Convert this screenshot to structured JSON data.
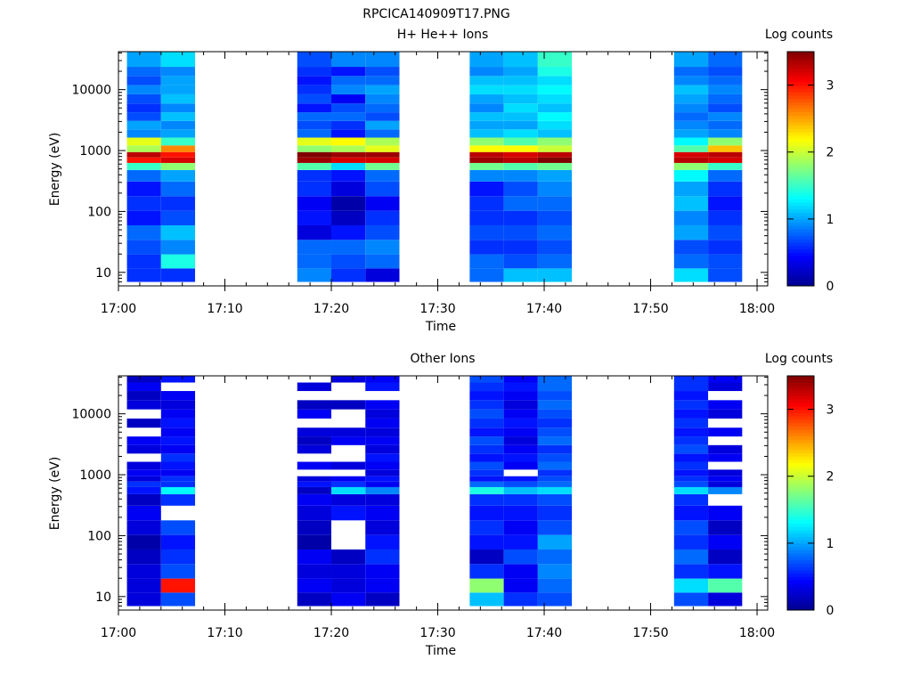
{
  "figure": {
    "title": "RPCICA140909T17.PNG"
  },
  "colormap": [
    "#00008f",
    "#0000ff",
    "#0080ff",
    "#00ffff",
    "#80ff80",
    "#ffff00",
    "#ff8000",
    "#ff0000",
    "#800000"
  ],
  "chart_data": [
    {
      "type": "heatmap",
      "title": "H+ He++ Ions",
      "xlabel": "Time",
      "ylabel": "Energy (eV)",
      "xlim": [
        "17:00",
        "18:01"
      ],
      "x_ticks": [
        "17:00",
        "17:10",
        "17:20",
        "17:30",
        "17:40",
        "17:50",
        "18:00"
      ],
      "y_scale": "log",
      "ylim": [
        6,
        42000
      ],
      "y_ticks": [
        "10",
        "100",
        "1000",
        "10000"
      ],
      "colorbar": {
        "label": "Log counts",
        "range": [
          0,
          3.5
        ],
        "ticks": [
          "0",
          "1",
          "2",
          "3"
        ]
      },
      "energy_bins_eV": [
        9,
        15,
        26,
        45,
        78,
        135,
        235,
        410,
        560,
        700,
        850,
        1050,
        1400,
        1900,
        2600,
        3600,
        5000,
        7000,
        10000,
        14000,
        20000,
        28000,
        38000
      ],
      "columns": [
        {
          "start": "17:00.8",
          "end": "17:04.0",
          "log_counts": [
            0.6,
            0.6,
            0.7,
            0.8,
            0.5,
            0.6,
            0.5,
            0.8,
            1.5,
            3.0,
            3.3,
            1.9,
            2.1,
            0.9,
            1.0,
            0.7,
            0.6,
            0.7,
            0.9,
            0.7,
            0.8,
            1.0,
            1.0
          ]
        },
        {
          "start": "17:04.0",
          "end": "17:07.2",
          "log_counts": [
            0.6,
            1.4,
            0.9,
            1.1,
            0.7,
            0.6,
            0.8,
            1.0,
            1.8,
            3.2,
            3.0,
            2.6,
            1.5,
            1.0,
            0.9,
            1.1,
            0.9,
            1.1,
            1.0,
            1.0,
            0.9,
            1.2,
            1.2
          ]
        },
        {
          "start": "17:16.8",
          "end": "17:20.0",
          "log_counts": [
            0.9,
            0.8,
            0.8,
            0.3,
            0.5,
            0.4,
            0.6,
            0.6,
            1.6,
            3.4,
            3.5,
            1.8,
            2.1,
            0.8,
            0.7,
            0.8,
            0.5,
            0.7,
            0.6,
            0.5,
            0.6,
            0.7,
            0.7
          ]
        },
        {
          "start": "17:20.0",
          "end": "17:23.2",
          "log_counts": [
            0.6,
            0.7,
            0.8,
            0.5,
            0.2,
            0.1,
            0.3,
            0.5,
            1.2,
            3.2,
            3.4,
            1.9,
            2.2,
            0.5,
            0.6,
            0.8,
            0.7,
            0.4,
            0.9,
            0.8,
            0.5,
            0.9,
            0.9
          ]
        },
        {
          "start": "17:23.2",
          "end": "17:26.4",
          "log_counts": [
            0.3,
            0.8,
            0.9,
            0.7,
            0.6,
            0.4,
            0.7,
            0.8,
            1.7,
            3.2,
            3.4,
            2.1,
            1.9,
            0.8,
            1.0,
            0.7,
            0.8,
            0.9,
            1.0,
            0.8,
            0.7,
            0.9,
            0.9
          ]
        },
        {
          "start": "17:33.0",
          "end": "17:36.2",
          "log_counts": [
            0.8,
            0.8,
            0.6,
            0.7,
            0.6,
            0.6,
            0.5,
            0.9,
            1.7,
            3.4,
            3.3,
            2.2,
            1.8,
            1.1,
            1.0,
            1.1,
            0.9,
            1.0,
            1.2,
            1.1,
            0.9,
            1.0,
            1.0
          ]
        },
        {
          "start": "17:36.2",
          "end": "17:39.4",
          "log_counts": [
            1.1,
            0.7,
            0.6,
            0.7,
            0.6,
            0.8,
            0.7,
            0.9,
            1.6,
            3.3,
            3.2,
            2.2,
            1.6,
            1.2,
            1.0,
            1.1,
            1.2,
            1.1,
            1.2,
            1.1,
            1.0,
            1.1,
            1.1
          ]
        },
        {
          "start": "17:39.4",
          "end": "17:42.6",
          "log_counts": [
            1.1,
            0.8,
            0.7,
            0.8,
            0.7,
            0.8,
            0.9,
            1.0,
            1.7,
            3.5,
            3.3,
            2.0,
            1.8,
            1.1,
            1.2,
            1.3,
            1.1,
            1.2,
            1.3,
            1.2,
            1.4,
            1.5,
            1.5
          ]
        },
        {
          "start": "17:52.2",
          "end": "17:55.4",
          "log_counts": [
            1.2,
            0.8,
            0.7,
            1.0,
            0.9,
            1.1,
            1.0,
            1.3,
            1.8,
            3.3,
            3.2,
            1.6,
            1.3,
            1.0,
            0.9,
            0.8,
            0.9,
            1.0,
            1.1,
            0.9,
            0.8,
            1.0,
            1.0
          ]
        },
        {
          "start": "17:55.4",
          "end": "17:58.6",
          "log_counts": [
            0.7,
            0.7,
            0.6,
            0.7,
            0.6,
            0.5,
            0.6,
            0.8,
            1.5,
            3.2,
            3.3,
            2.4,
            1.8,
            0.9,
            0.8,
            0.9,
            0.7,
            0.8,
            0.9,
            0.8,
            0.7,
            0.8,
            0.8
          ]
        }
      ]
    },
    {
      "type": "heatmap",
      "title": "Other Ions",
      "xlabel": "Time",
      "ylabel": "Energy (eV)",
      "xlim": [
        "17:00",
        "18:01"
      ],
      "x_ticks": [
        "17:00",
        "17:10",
        "17:20",
        "17:30",
        "17:40",
        "17:50",
        "18:00"
      ],
      "y_scale": "log",
      "ylim": [
        6,
        42000
      ],
      "y_ticks": [
        "10",
        "100",
        "1000",
        "10000"
      ],
      "colorbar": {
        "label": "Log counts",
        "range": [
          0,
          3.5
        ],
        "ticks": [
          "0",
          "1",
          "2",
          "3"
        ]
      },
      "energy_bins_eV": [
        9,
        15,
        26,
        45,
        78,
        135,
        235,
        410,
        560,
        700,
        850,
        1050,
        1400,
        1900,
        2600,
        3600,
        5000,
        7000,
        10000,
        14000,
        20000,
        28000,
        38000
      ],
      "columns": [
        {
          "start": "17:00.8",
          "end": "17:04.0",
          "log_counts": [
            0.3,
            0.3,
            0.3,
            0.2,
            0.1,
            0.3,
            0.4,
            0.2,
            0.5,
            0.6,
            0.3,
            0.4,
            0.3,
            null,
            0.3,
            0.4,
            null,
            0.2,
            null,
            0.3,
            0.2,
            0.4,
            0.2
          ]
        },
        {
          "start": "17:04.0",
          "end": "17:07.2",
          "log_counts": [
            0.7,
            3.0,
            0.7,
            0.6,
            0.5,
            0.7,
            null,
            0.6,
            1.3,
            0.6,
            0.6,
            0.4,
            0.5,
            0.6,
            0.4,
            0.5,
            0.4,
            0.5,
            0.4,
            0.3,
            0.4,
            null,
            0.5
          ]
        },
        {
          "start": "17:16.8",
          "end": "17:20.0",
          "log_counts": [
            0.2,
            0.4,
            0.3,
            0.4,
            0.1,
            0.2,
            0.3,
            0.4,
            0.2,
            0.5,
            0.3,
            null,
            0.4,
            null,
            0.3,
            0.2,
            0.3,
            null,
            0.4,
            0.2,
            null,
            0.3,
            null
          ]
        },
        {
          "start": "17:20.0",
          "end": "17:23.2",
          "log_counts": [
            0.4,
            0.3,
            0.3,
            0.2,
            null,
            null,
            0.5,
            0.3,
            1.2,
            0.6,
            0.4,
            null,
            0.3,
            null,
            null,
            0.4,
            0.3,
            null,
            null,
            0.2,
            null,
            null,
            0.3
          ]
        },
        {
          "start": "17:23.2",
          "end": "17:26.4",
          "log_counts": [
            0.2,
            0.4,
            0.4,
            0.6,
            0.5,
            0.3,
            0.4,
            0.3,
            0.9,
            0.4,
            0.5,
            0.3,
            0.4,
            0.5,
            0.3,
            0.4,
            0.3,
            0.4,
            0.3,
            0.4,
            null,
            0.5,
            0.4
          ]
        },
        {
          "start": "17:33.0",
          "end": "17:36.2",
          "log_counts": [
            1.1,
            1.8,
            0.6,
            0.2,
            0.5,
            0.6,
            0.5,
            0.6,
            1.4,
            0.8,
            0.5,
            0.6,
            0.7,
            0.5,
            0.6,
            0.7,
            0.5,
            0.6,
            0.7,
            0.6,
            0.5,
            0.6,
            0.7
          ]
        },
        {
          "start": "17:36.2",
          "end": "17:39.4",
          "log_counts": [
            0.6,
            0.4,
            0.4,
            0.7,
            0.5,
            0.4,
            0.5,
            0.6,
            1.1,
            0.7,
            0.5,
            null,
            0.4,
            0.5,
            0.4,
            0.3,
            0.4,
            0.5,
            0.4,
            0.3,
            0.4,
            0.5,
            0.4
          ]
        },
        {
          "start": "17:39.4",
          "end": "17:42.6",
          "log_counts": [
            0.7,
            0.8,
            0.9,
            0.8,
            1.0,
            0.7,
            0.6,
            0.7,
            1.2,
            0.8,
            0.7,
            0.6,
            0.8,
            0.7,
            0.6,
            0.8,
            0.7,
            0.6,
            0.7,
            0.8,
            0.7,
            0.8,
            0.8
          ]
        },
        {
          "start": "17:52.2",
          "end": "17:55.4",
          "log_counts": [
            0.7,
            1.2,
            0.6,
            0.8,
            0.6,
            0.7,
            0.5,
            0.6,
            1.2,
            0.7,
            0.6,
            0.5,
            0.6,
            0.5,
            0.7,
            0.6,
            0.5,
            0.6,
            0.5,
            0.6,
            0.5,
            0.6,
            0.6
          ]
        },
        {
          "start": "17:55.4",
          "end": "17:58.6",
          "log_counts": [
            0.3,
            1.6,
            0.5,
            0.2,
            0.4,
            0.2,
            0.4,
            null,
            0.9,
            0.3,
            0.4,
            0.3,
            null,
            0.4,
            0.3,
            null,
            0.4,
            null,
            0.3,
            0.4,
            null,
            0.3,
            0.4
          ]
        }
      ]
    }
  ]
}
